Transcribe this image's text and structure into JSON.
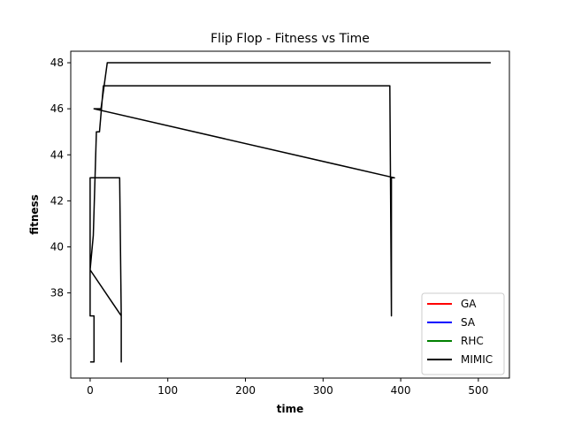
{
  "chart_data": {
    "type": "line",
    "title": "Flip Flop - Fitness vs Time",
    "xlabel": "time",
    "ylabel": "fitness",
    "xlim": [
      -25,
      540
    ],
    "ylim": [
      34.3,
      48.5
    ],
    "xticks": [
      0,
      100,
      200,
      300,
      400,
      500
    ],
    "yticks": [
      36,
      38,
      40,
      42,
      44,
      46,
      48
    ],
    "grid": false,
    "legend_position": "lower right",
    "legend": [
      {
        "name": "GA",
        "color": "#ff0000"
      },
      {
        "name": "SA",
        "color": "#0000ff"
      },
      {
        "name": "RHC",
        "color": "#008000"
      },
      {
        "name": "MIMIC",
        "color": "#000000"
      }
    ],
    "series": [
      {
        "name": "MIMIC",
        "color": "#000000",
        "points": [
          [
            0,
            35
          ],
          [
            5,
            35
          ],
          [
            5,
            37
          ],
          [
            0,
            37
          ],
          [
            0,
            43
          ],
          [
            38,
            43
          ],
          [
            40,
            37
          ],
          [
            40,
            35
          ],
          [
            40,
            37
          ],
          [
            0,
            39
          ],
          [
            4,
            40.5
          ],
          [
            8,
            45
          ],
          [
            12,
            45
          ],
          [
            17,
            47
          ],
          [
            386,
            47
          ],
          [
            388,
            37
          ],
          [
            388,
            43
          ],
          [
            392,
            43
          ],
          [
            5,
            46
          ],
          [
            14,
            46
          ],
          [
            22,
            48
          ],
          [
            516,
            48
          ]
        ]
      }
    ]
  }
}
